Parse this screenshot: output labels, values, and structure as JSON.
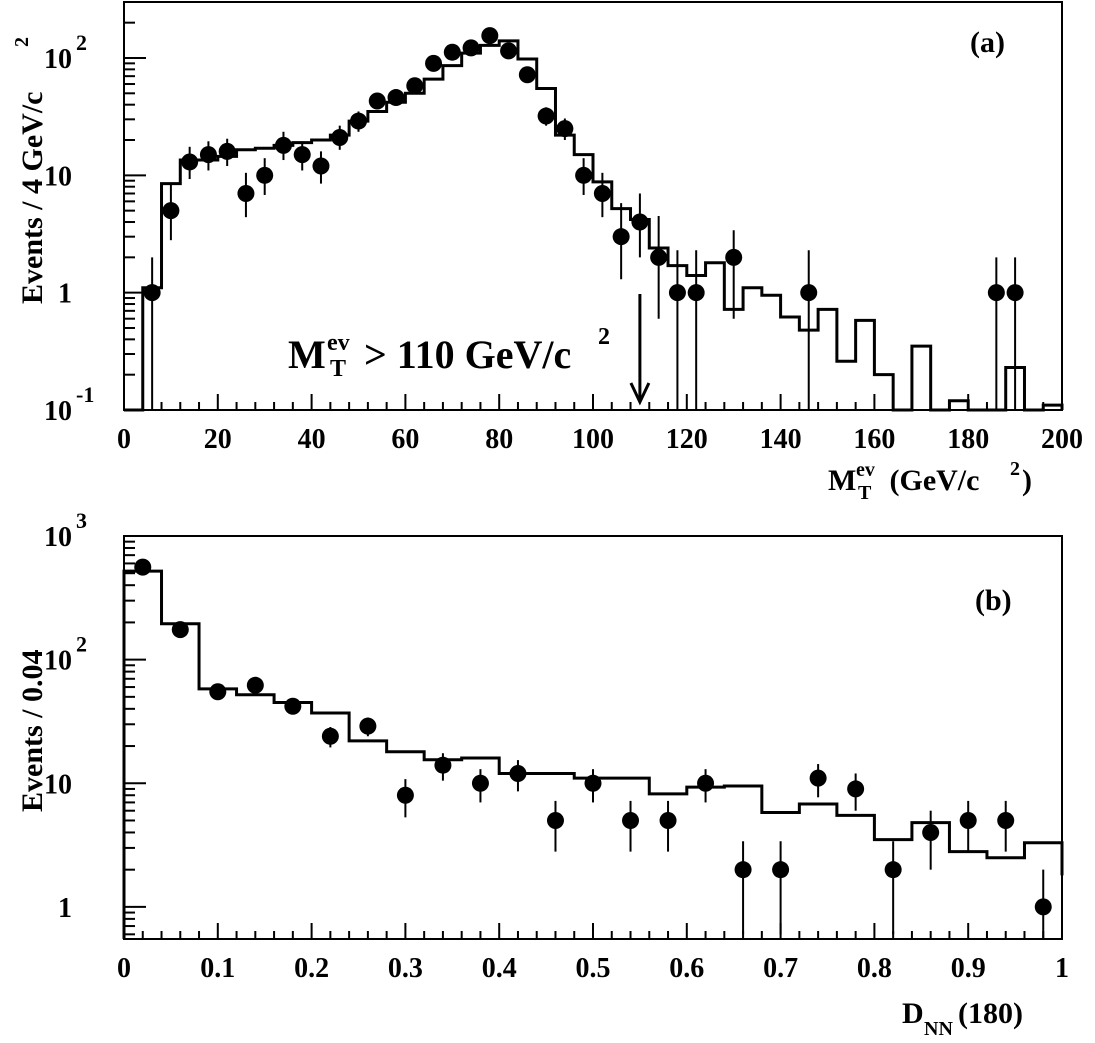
{
  "chart_data": [
    {
      "type": "histogram",
      "panel_label": "(a)",
      "xlabel": "M",
      "xlabel_sup": "ev",
      "xlabel_sub": "T",
      "xlabel_unit_prefix": " (GeV/c",
      "xlabel_unit_sup": "2",
      "xlabel_unit_suffix": ")",
      "ylabel": "Events / 4 GeV/c",
      "ylabel_sup": "2",
      "xlim": [
        0,
        200
      ],
      "ylim": [
        0.1,
        300
      ],
      "yscale": "log",
      "x_ticks": [
        0,
        20,
        40,
        60,
        80,
        100,
        120,
        140,
        160,
        180,
        200
      ],
      "x_tick_labels": [
        "0",
        "20",
        "40",
        "60",
        "80",
        "100",
        "120",
        "140",
        "160",
        "180",
        "200"
      ],
      "y_ticks": [
        {
          "value": 100,
          "base": "10",
          "exp": "2"
        },
        {
          "value": 10,
          "base": "10",
          "exp": ""
        },
        {
          "value": 1,
          "base": "1",
          "exp": ""
        },
        {
          "value": 0.1,
          "base": "10",
          "exp": "-1"
        }
      ],
      "annotation": {
        "main": "M",
        "sup": "ev",
        "sub": "T",
        "rest": "> 110 GeV/c",
        "rest_sup": "2",
        "arrow_x": 110
      },
      "hist_bin_edges": [
        0,
        4,
        8,
        12,
        16,
        20,
        24,
        28,
        32,
        36,
        40,
        44,
        48,
        52,
        56,
        60,
        64,
        68,
        72,
        76,
        80,
        84,
        88,
        92,
        96,
        100,
        104,
        108,
        112,
        116,
        120,
        124,
        128,
        132,
        136,
        140,
        144,
        148,
        152,
        156,
        160,
        164,
        168,
        172,
        176,
        180,
        184,
        188,
        192,
        196,
        200
      ],
      "hist_values": [
        0.1,
        1.1,
        8.5,
        13.5,
        13.5,
        14.5,
        16.5,
        17.0,
        18.0,
        19.0,
        20.0,
        22.0,
        29.0,
        35.0,
        42.0,
        50.0,
        66.0,
        86.0,
        110.0,
        128.0,
        140.0,
        98.0,
        55.0,
        22.0,
        15.0,
        8.8,
        5.2,
        4.2,
        2.4,
        1.7,
        1.4,
        1.8,
        0.72,
        1.1,
        0.95,
        0.62,
        0.48,
        0.72,
        0.26,
        0.58,
        0.2,
        0.1,
        0.35,
        0.1,
        0.12,
        0.1,
        0.1,
        0.23,
        0.1,
        0.11
      ],
      "points": [
        {
          "x": 6,
          "y": 1,
          "err": [
            0.0,
            2.0
          ]
        },
        {
          "x": 10,
          "y": 5,
          "err": [
            2.8,
            8.5
          ]
        },
        {
          "x": 14,
          "y": 13,
          "err": [
            9.3,
            17.5
          ]
        },
        {
          "x": 18,
          "y": 15,
          "err": [
            11.0,
            19.5
          ]
        },
        {
          "x": 22,
          "y": 16,
          "err": [
            12.0,
            20.5
          ]
        },
        {
          "x": 26,
          "y": 7,
          "err": [
            4.4,
            10.5
          ]
        },
        {
          "x": 30,
          "y": 10,
          "err": [
            6.8,
            14.0
          ]
        },
        {
          "x": 34,
          "y": 18,
          "err": [
            13.5,
            23.5
          ]
        },
        {
          "x": 38,
          "y": 15,
          "err": [
            11.0,
            19.5
          ]
        },
        {
          "x": 42,
          "y": 12,
          "err": [
            8.5,
            16.0
          ]
        },
        {
          "x": 46,
          "y": 21,
          "err": [
            16.5,
            26.5
          ]
        },
        {
          "x": 50,
          "y": 29,
          "err": [
            23.5,
            35.0
          ]
        },
        {
          "x": 54,
          "y": 43,
          "err": [
            36.5,
            50.0
          ]
        },
        {
          "x": 58,
          "y": 46,
          "err": [
            39.5,
            53.0
          ]
        },
        {
          "x": 62,
          "y": 58,
          "err": [
            50.5,
            66.0
          ]
        },
        {
          "x": 66,
          "y": 90,
          "err": [
            80.5,
            100.0
          ]
        },
        {
          "x": 70,
          "y": 112,
          "err": [
            101.0,
            123.0
          ]
        },
        {
          "x": 74,
          "y": 122,
          "err": [
            111.0,
            133.0
          ]
        },
        {
          "x": 78,
          "y": 155,
          "err": [
            143.0,
            167.0
          ]
        },
        {
          "x": 82,
          "y": 115,
          "err": [
            104.0,
            126.0
          ]
        },
        {
          "x": 86,
          "y": 72,
          "err": [
            63.5,
            80.5
          ]
        },
        {
          "x": 90,
          "y": 32,
          "err": [
            26.5,
            38.0
          ]
        },
        {
          "x": 94,
          "y": 25,
          "err": [
            20.0,
            30.5
          ]
        },
        {
          "x": 98,
          "y": 10,
          "err": [
            6.8,
            14.0
          ]
        },
        {
          "x": 102,
          "y": 7,
          "err": [
            4.4,
            10.5
          ]
        },
        {
          "x": 106,
          "y": 3,
          "err": [
            1.3,
            5.8
          ]
        },
        {
          "x": 110,
          "y": 4,
          "err": [
            2.0,
            7.0
          ]
        },
        {
          "x": 114,
          "y": 2,
          "err": [
            0.6,
            4.5
          ]
        },
        {
          "x": 118,
          "y": 1,
          "err": [
            0.0,
            2.3
          ]
        },
        {
          "x": 122,
          "y": 1,
          "err": [
            0.0,
            2.3
          ]
        },
        {
          "x": 130,
          "y": 2,
          "err": [
            0.6,
            3.4
          ]
        },
        {
          "x": 146,
          "y": 1,
          "err": [
            0.0,
            2.3
          ]
        },
        {
          "x": 186,
          "y": 1,
          "err": [
            0.0,
            2.0
          ]
        },
        {
          "x": 190,
          "y": 1,
          "err": [
            0.0,
            2.0
          ]
        }
      ]
    },
    {
      "type": "histogram",
      "panel_label": "(b)",
      "xlabel": "D",
      "xlabel_sub": "NN",
      "xlabel_suffix": "(180)",
      "ylabel": "Events / 0.04",
      "xlim": [
        0,
        1
      ],
      "ylim": [
        0.55,
        1000
      ],
      "yscale": "log",
      "x_ticks": [
        0,
        0.1,
        0.2,
        0.3,
        0.4,
        0.5,
        0.6,
        0.7,
        0.8,
        0.9,
        1
      ],
      "x_tick_labels": [
        "0",
        "0.1",
        "0.2",
        "0.3",
        "0.4",
        "0.5",
        "0.6",
        "0.7",
        "0.8",
        "0.9",
        "1"
      ],
      "y_ticks": [
        {
          "value": 1000,
          "base": "10",
          "exp": "3"
        },
        {
          "value": 100,
          "base": "10",
          "exp": "2"
        },
        {
          "value": 10,
          "base": "10",
          "exp": ""
        },
        {
          "value": 1,
          "base": "1",
          "exp": ""
        }
      ],
      "hist_bin_edges": [
        0,
        0.04,
        0.08,
        0.12,
        0.16,
        0.2,
        0.24,
        0.28,
        0.32,
        0.36,
        0.4,
        0.44,
        0.48,
        0.52,
        0.56,
        0.6,
        0.64,
        0.68,
        0.72,
        0.76,
        0.8,
        0.84,
        0.88,
        0.92,
        0.96,
        1.0
      ],
      "hist_values": [
        520,
        195,
        58,
        52,
        45,
        37,
        22,
        18,
        15.5,
        16,
        12,
        12,
        11,
        11,
        8.2,
        9.3,
        9.5,
        5.8,
        6.8,
        5.5,
        3.5,
        4.8,
        2.8,
        2.5,
        3.3,
        1.8
      ],
      "points": [
        {
          "x": 0.02,
          "y": 560,
          "err": [
            535,
            585
          ]
        },
        {
          "x": 0.06,
          "y": 175,
          "err": [
            162,
            188
          ]
        },
        {
          "x": 0.1,
          "y": 55,
          "err": [
            48,
            62
          ]
        },
        {
          "x": 0.14,
          "y": 62,
          "err": [
            54,
            70
          ]
        },
        {
          "x": 0.18,
          "y": 42,
          "err": [
            36,
            48
          ]
        },
        {
          "x": 0.22,
          "y": 24,
          "err": [
            19.5,
            28.5
          ]
        },
        {
          "x": 0.26,
          "y": 29,
          "err": [
            24,
            34
          ]
        },
        {
          "x": 0.3,
          "y": 8,
          "err": [
            5.3,
            10.8
          ]
        },
        {
          "x": 0.34,
          "y": 14,
          "err": [
            10.5,
            17.5
          ]
        },
        {
          "x": 0.38,
          "y": 10,
          "err": [
            7,
            13
          ]
        },
        {
          "x": 0.42,
          "y": 12,
          "err": [
            8.6,
            15.4
          ]
        },
        {
          "x": 0.46,
          "y": 5,
          "err": [
            2.8,
            7.2
          ]
        },
        {
          "x": 0.5,
          "y": 10,
          "err": [
            7,
            13
          ]
        },
        {
          "x": 0.54,
          "y": 5,
          "err": [
            2.8,
            7.2
          ]
        },
        {
          "x": 0.58,
          "y": 5,
          "err": [
            2.8,
            7.2
          ]
        },
        {
          "x": 0.62,
          "y": 10,
          "err": [
            7,
            13
          ]
        },
        {
          "x": 0.66,
          "y": 2,
          "err": [
            0.6,
            3.4
          ]
        },
        {
          "x": 0.7,
          "y": 2,
          "err": [
            0.6,
            3.4
          ]
        },
        {
          "x": 0.74,
          "y": 11,
          "err": [
            7.7,
            14.3
          ]
        },
        {
          "x": 0.78,
          "y": 9,
          "err": [
            6,
            12
          ]
        },
        {
          "x": 0.82,
          "y": 2,
          "err": [
            0.6,
            3.4
          ]
        },
        {
          "x": 0.86,
          "y": 4,
          "err": [
            2,
            6
          ]
        },
        {
          "x": 0.9,
          "y": 5,
          "err": [
            2.8,
            7.2
          ]
        },
        {
          "x": 0.94,
          "y": 5,
          "err": [
            2.8,
            7.2
          ]
        },
        {
          "x": 0.98,
          "y": 1,
          "err": [
            0.5,
            2
          ]
        }
      ]
    }
  ]
}
